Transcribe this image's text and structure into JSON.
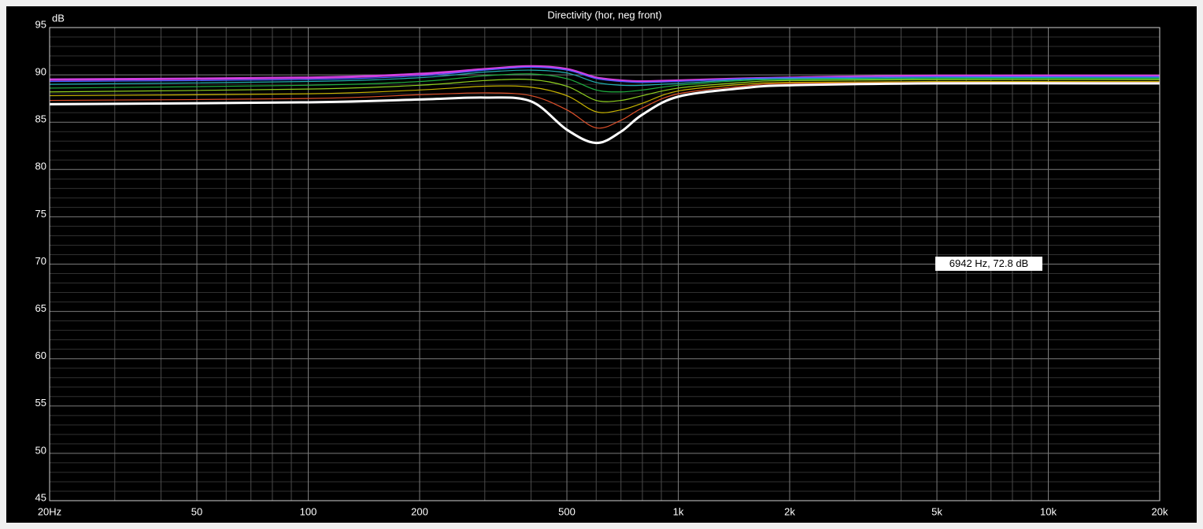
{
  "chart_data": {
    "type": "line",
    "title": "Directivity (hor, neg front)",
    "y_label": "dB",
    "annotation": "6942 Hz, 72.8 dB",
    "log_x": true,
    "grid": true,
    "xlim": [
      20,
      20000
    ],
    "ylim": [
      45,
      95
    ],
    "xticks": [
      {
        "value": 20,
        "label": "20Hz"
      },
      50,
      100,
      200,
      500,
      {
        "value": 1000,
        "label": "1k"
      },
      {
        "value": 2000,
        "label": "2k"
      },
      {
        "value": 5000,
        "label": "5k"
      },
      {
        "value": 10000,
        "label": "10k"
      },
      {
        "value": 20000,
        "label": "20k"
      }
    ],
    "xmajor": [
      100,
      1000,
      10000
    ],
    "xminorticks": [
      30,
      40,
      60,
      70,
      80,
      90,
      300,
      400,
      600,
      700,
      800,
      900,
      3000,
      4000,
      6000,
      7000,
      8000,
      9000
    ],
    "yticks": [
      45,
      50,
      55,
      60,
      65,
      70,
      75,
      80,
      85,
      90,
      95
    ],
    "yminorticks": [
      46,
      47,
      48,
      49,
      51,
      52,
      53,
      54,
      56,
      57,
      58,
      59,
      61,
      62,
      63,
      64,
      66,
      67,
      68,
      69,
      71,
      72,
      73,
      74,
      76,
      77,
      78,
      79,
      81,
      82,
      83,
      84,
      86,
      87,
      88,
      89,
      91,
      92,
      93,
      94
    ],
    "x": [
      20,
      100,
      200,
      300,
      400,
      500,
      600,
      700,
      800,
      1000,
      1500,
      2000,
      5000,
      20000
    ],
    "series": [
      {
        "color": "#d040e0",
        "linewidth": 3,
        "values": [
          89.5,
          89.7,
          90.1,
          90.6,
          90.9,
          90.6,
          89.7,
          89.4,
          89.3,
          89.4,
          89.6,
          89.7,
          89.9,
          89.9
        ]
      },
      {
        "color": "#4060ff",
        "linewidth": 1.2,
        "values": [
          89.3,
          89.5,
          89.9,
          90.5,
          90.8,
          90.5,
          89.6,
          89.3,
          89.2,
          89.3,
          89.6,
          89.7,
          89.8,
          89.8
        ]
      },
      {
        "color": "#20b0b0",
        "linewidth": 1.2,
        "values": [
          89.0,
          89.3,
          89.7,
          90.3,
          90.5,
          90.2,
          89.2,
          88.9,
          88.9,
          89.1,
          89.5,
          89.6,
          89.7,
          89.7
        ]
      },
      {
        "color": "#20b040",
        "linewidth": 1.2,
        "values": [
          88.6,
          88.9,
          89.3,
          89.9,
          90.1,
          89.6,
          88.4,
          88.2,
          88.4,
          88.9,
          89.4,
          89.5,
          89.6,
          89.6
        ]
      },
      {
        "color": "#90d020",
        "linewidth": 1.2,
        "values": [
          88.2,
          88.5,
          88.9,
          89.4,
          89.5,
          88.8,
          87.3,
          87.3,
          87.8,
          88.6,
          89.2,
          89.4,
          89.5,
          89.5
        ]
      },
      {
        "color": "#c8b400",
        "linewidth": 1.2,
        "values": [
          87.8,
          88.0,
          88.4,
          88.8,
          88.7,
          87.8,
          86.1,
          86.3,
          87.0,
          88.3,
          89.0,
          89.2,
          89.3,
          89.3
        ]
      },
      {
        "color": "#e0502a",
        "linewidth": 1.2,
        "values": [
          87.3,
          87.5,
          87.9,
          88.1,
          87.8,
          86.3,
          84.4,
          85.2,
          86.5,
          88.0,
          88.8,
          89.1,
          89.2,
          89.2
        ]
      },
      {
        "color": "#ffffff",
        "linewidth": 3,
        "values": [
          86.9,
          87.1,
          87.4,
          87.6,
          87.2,
          84.2,
          82.8,
          84.0,
          85.8,
          87.7,
          88.6,
          88.9,
          89.1,
          89.1
        ]
      }
    ]
  }
}
